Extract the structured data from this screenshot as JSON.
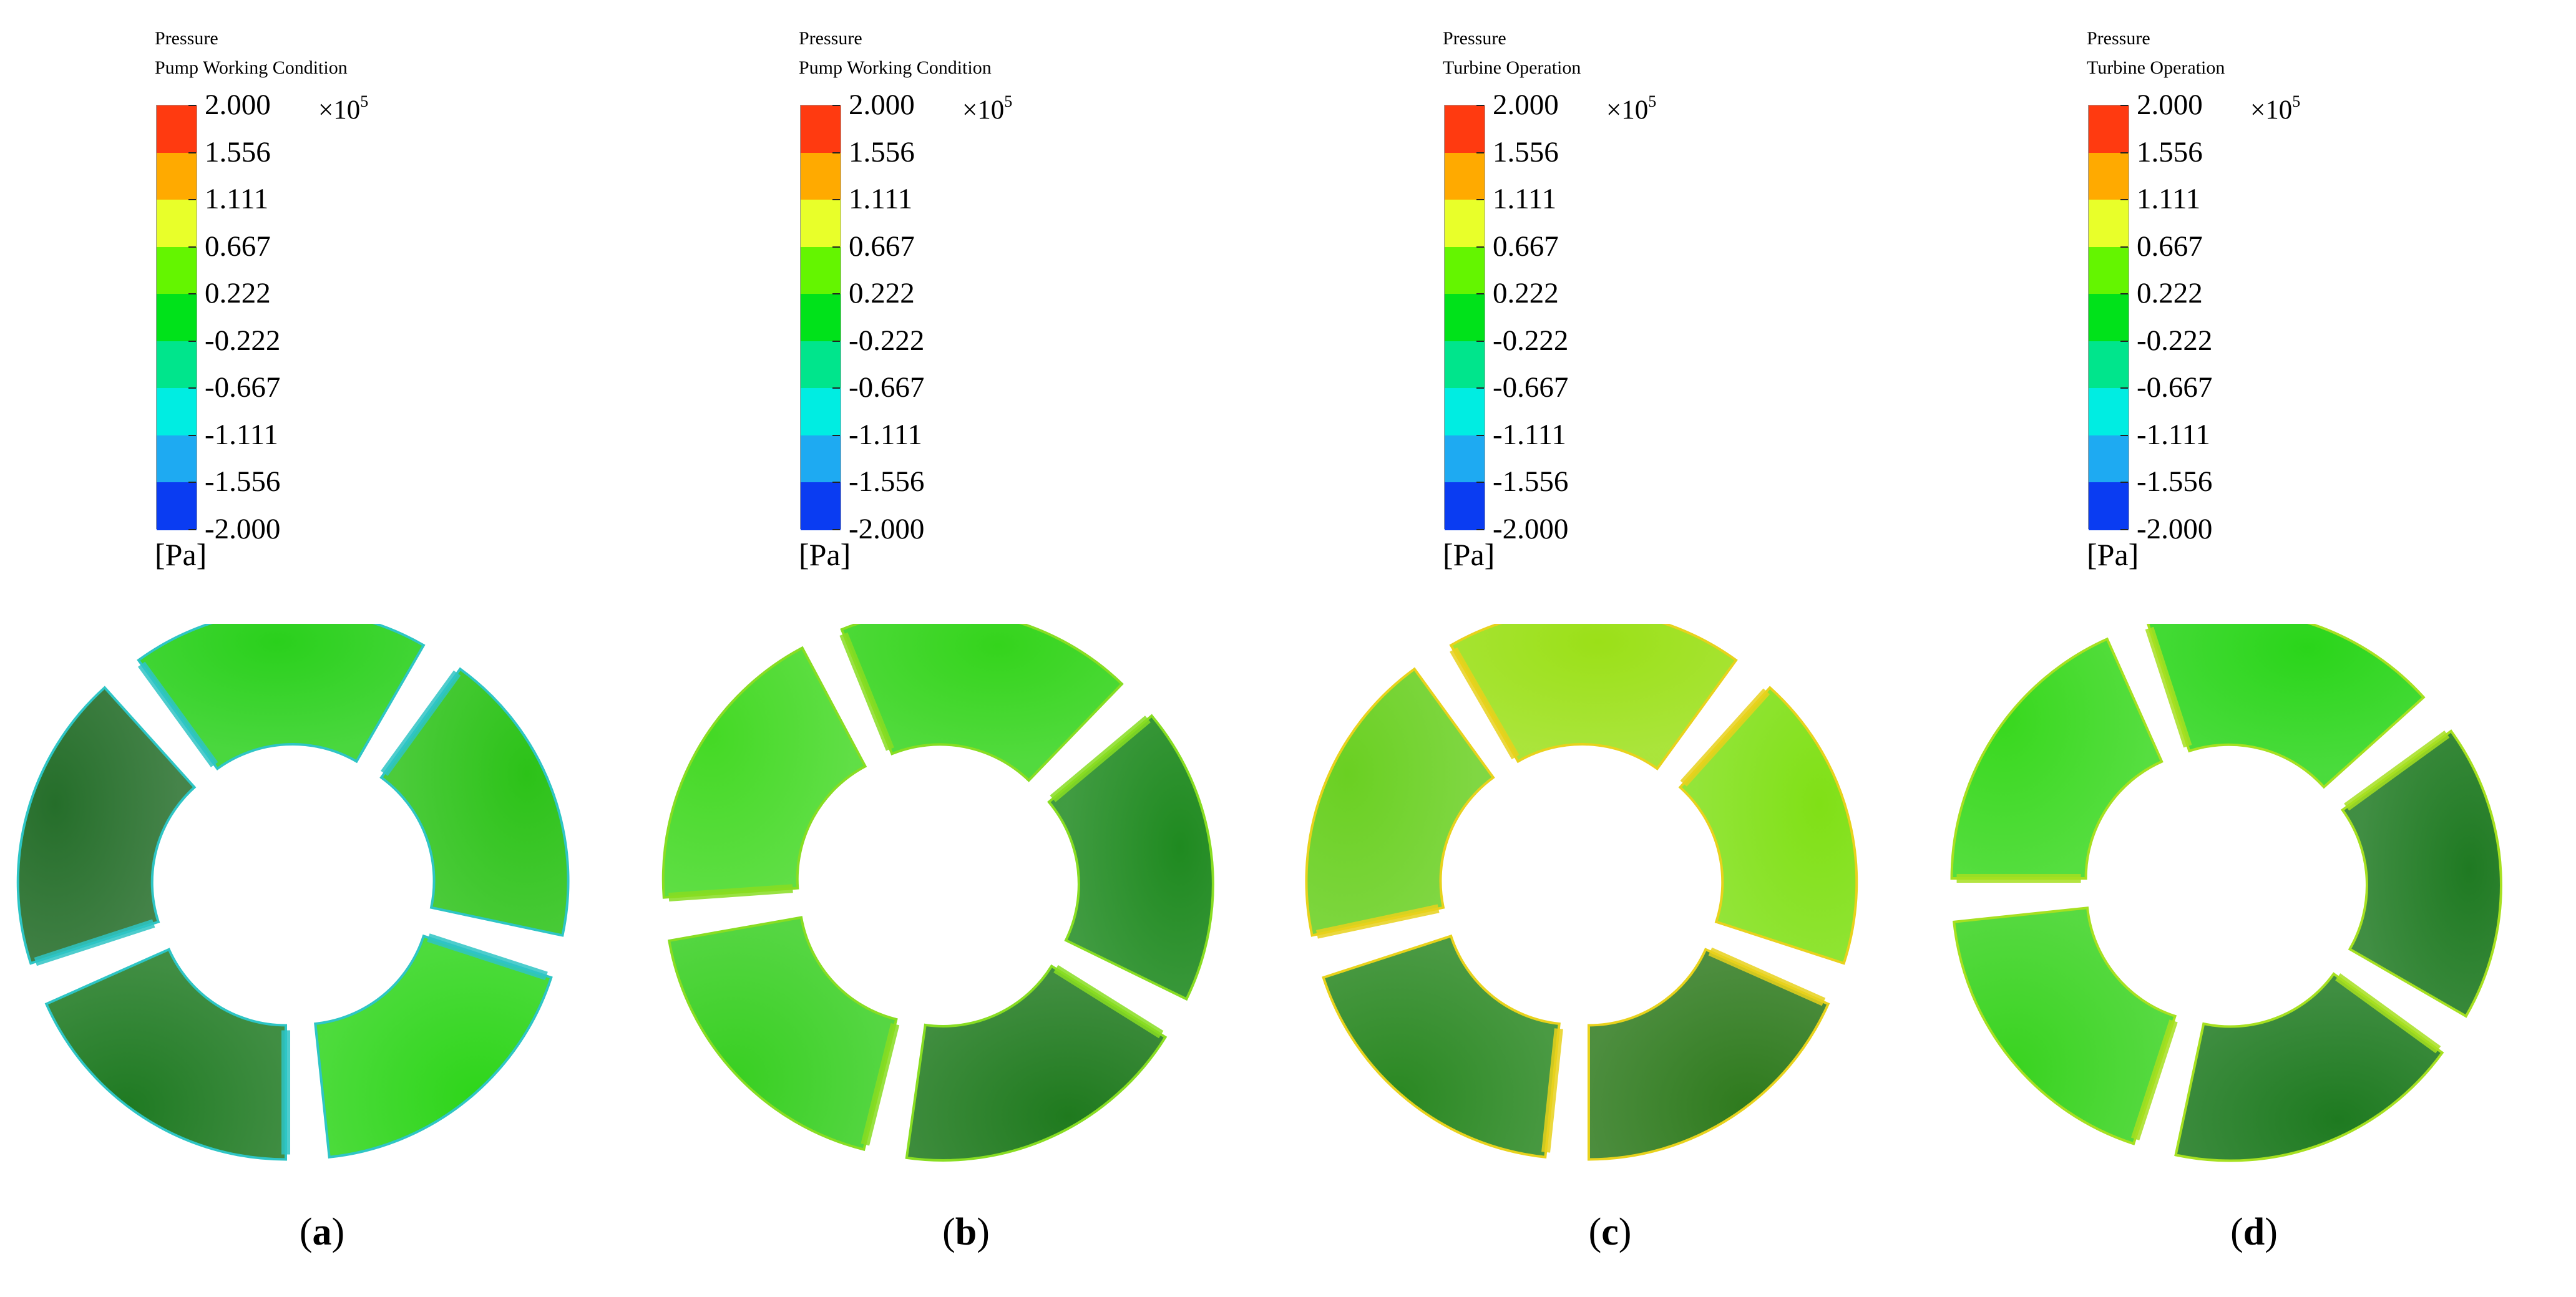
{
  "legend_common": {
    "variable": "Pressure",
    "multiplier_base": "×10",
    "multiplier_exp": "5",
    "unit": "[Pa]",
    "tick_labels": [
      "2.000",
      "1.556",
      "1.111",
      "0.667",
      "0.222",
      "-0.222",
      "-0.667",
      "-1.111",
      "-1.556",
      "-2.000"
    ],
    "band_colors": [
      "#ff3a10",
      "#ffaa00",
      "#e8ff2a",
      "#64f500",
      "#00e21a",
      "#00e58c",
      "#00ede2",
      "#1eaaf2",
      "#0a3cf2"
    ]
  },
  "panels": [
    {
      "condition": "Pump Working Condition",
      "label": "a",
      "blade_colors": [
        "#2ad01c",
        "#2cc218",
        "#2ed51a",
        "#1f7a22",
        "#256e2a"
      ],
      "accent_color": "#2ec5c5"
    },
    {
      "condition": "Pump Working Condition",
      "label": "b",
      "blade_colors": [
        "#34d41c",
        "#1f8a20",
        "#1f7a1e",
        "#38cf22",
        "#44d925"
      ],
      "accent_color": "#88dd22"
    },
    {
      "condition": "Turbine Operation",
      "label": "c",
      "blade_colors": [
        "#9be018",
        "#80e016",
        "#2e7a1d",
        "#2a8822",
        "#6ad022"
      ],
      "accent_color": "#e8d21c"
    },
    {
      "condition": "Turbine Operation",
      "label": "d",
      "blade_colors": [
        "#2ad51a",
        "#1f7a22",
        "#1e7a20",
        "#39d320",
        "#38d81e"
      ],
      "accent_color": "#a6e020"
    }
  ]
}
